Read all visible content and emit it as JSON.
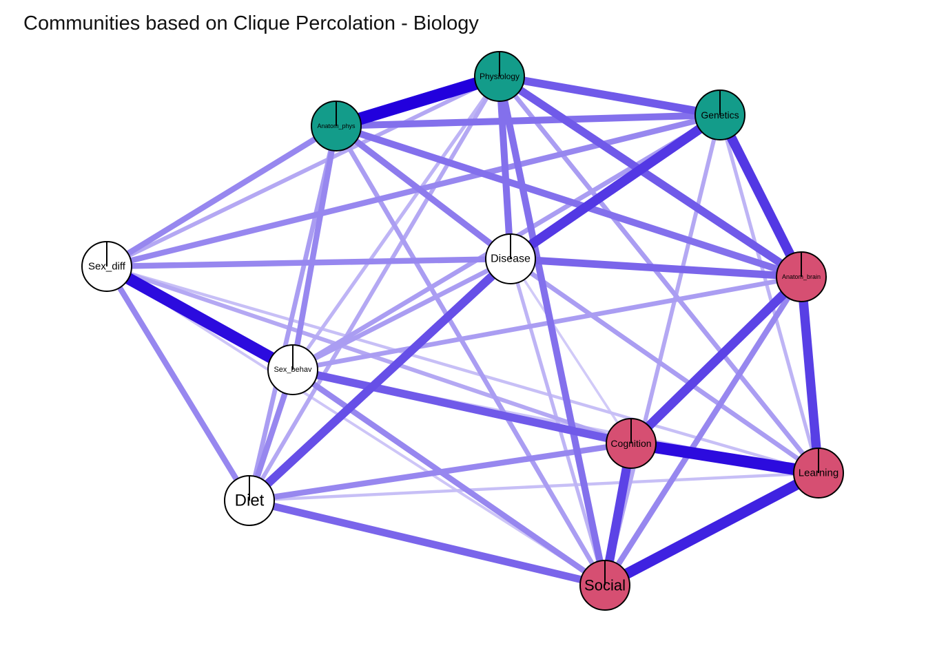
{
  "title": "Communities based on Clique Percolation - Biology",
  "colors": {
    "community_1": "#139C8A",
    "community_2": "#D64F72",
    "no_community": "#FFFFFF",
    "edge": "#2200DD",
    "node_border": "#000000"
  },
  "nodes": [
    {
      "id": "Physiology",
      "label": "Physiology",
      "community": "community_1"
    },
    {
      "id": "Anatom_phys",
      "label": "Anatom_phys",
      "community": "community_1"
    },
    {
      "id": "Genetics",
      "label": "Genetics",
      "community": "community_1"
    },
    {
      "id": "Sex_diff",
      "label": "Sex_diff",
      "community": "no_community"
    },
    {
      "id": "Disease",
      "label": "Disease",
      "community": "no_community"
    },
    {
      "id": "Anatom_brain",
      "label": "Anatom_brain",
      "community": "community_2"
    },
    {
      "id": "Sex_behav",
      "label": "Sex_behav",
      "community": "no_community"
    },
    {
      "id": "Cognition",
      "label": "Cognition",
      "community": "community_2"
    },
    {
      "id": "Learning",
      "label": "Learning",
      "community": "community_2"
    },
    {
      "id": "Diet",
      "label": "Diet",
      "community": "no_community"
    },
    {
      "id": "Social",
      "label": "Social",
      "community": "community_2"
    }
  ],
  "edges": [
    {
      "source": "Physiology",
      "target": "Anatom_phys",
      "weight": 1.0
    },
    {
      "source": "Sex_diff",
      "target": "Sex_behav",
      "weight": 0.95
    },
    {
      "source": "Cognition",
      "target": "Learning",
      "weight": 0.95
    },
    {
      "source": "Learning",
      "target": "Social",
      "weight": 0.85
    },
    {
      "source": "Genetics",
      "target": "Disease",
      "weight": 0.75
    },
    {
      "source": "Genetics",
      "target": "Anatom_brain",
      "weight": 0.75
    },
    {
      "source": "Anatom_brain",
      "target": "Learning",
      "weight": 0.72
    },
    {
      "source": "Anatom_brain",
      "target": "Cognition",
      "weight": 0.7
    },
    {
      "source": "Cognition",
      "target": "Social",
      "weight": 0.7
    },
    {
      "source": "Disease",
      "target": "Diet",
      "weight": 0.65
    },
    {
      "source": "Sex_behav",
      "target": "Cognition",
      "weight": 0.6
    },
    {
      "source": "Physiology",
      "target": "Genetics",
      "weight": 0.6
    },
    {
      "source": "Physiology",
      "target": "Anatom_brain",
      "weight": 0.6
    },
    {
      "source": "Disease",
      "target": "Anatom_brain",
      "weight": 0.55
    },
    {
      "source": "Diet",
      "target": "Social",
      "weight": 0.55
    },
    {
      "source": "Anatom_phys",
      "target": "Genetics",
      "weight": 0.5
    },
    {
      "source": "Anatom_phys",
      "target": "Anatom_brain",
      "weight": 0.5
    },
    {
      "source": "Physiology",
      "target": "Disease",
      "weight": 0.5
    },
    {
      "source": "Physiology",
      "target": "Social",
      "weight": 0.5
    },
    {
      "source": "Anatom_phys",
      "target": "Disease",
      "weight": 0.45
    },
    {
      "source": "Anatom_phys",
      "target": "Sex_diff",
      "weight": 0.4
    },
    {
      "source": "Anatom_phys",
      "target": "Sex_behav",
      "weight": 0.4
    },
    {
      "source": "Sex_diff",
      "target": "Genetics",
      "weight": 0.4
    },
    {
      "source": "Sex_diff",
      "target": "Disease",
      "weight": 0.4
    },
    {
      "source": "Sex_diff",
      "target": "Diet",
      "weight": 0.4
    },
    {
      "source": "Sex_behav",
      "target": "Diet",
      "weight": 0.4
    },
    {
      "source": "Sex_behav",
      "target": "Social",
      "weight": 0.4
    },
    {
      "source": "Diet",
      "target": "Cognition",
      "weight": 0.4
    },
    {
      "source": "Anatom_brain",
      "target": "Social",
      "weight": 0.4
    },
    {
      "source": "Genetics",
      "target": "Sex_behav",
      "weight": 0.3
    },
    {
      "source": "Anatom_phys",
      "target": "Diet",
      "weight": 0.3
    },
    {
      "source": "Disease",
      "target": "Sex_behav",
      "weight": 0.3
    },
    {
      "source": "Sex_behav",
      "target": "Anatom_brain",
      "weight": 0.3
    },
    {
      "source": "Anatom_phys",
      "target": "Social",
      "weight": 0.3
    },
    {
      "source": "Disease",
      "target": "Learning",
      "weight": 0.3
    },
    {
      "source": "Physiology",
      "target": "Learning",
      "weight": 0.3
    },
    {
      "source": "Physiology",
      "target": "Sex_diff",
      "weight": 0.25
    },
    {
      "source": "Physiology",
      "target": "Diet",
      "weight": 0.25
    },
    {
      "source": "Genetics",
      "target": "Social",
      "weight": 0.25
    },
    {
      "source": "Sex_diff",
      "target": "Cognition",
      "weight": 0.25
    },
    {
      "source": "Physiology",
      "target": "Sex_behav",
      "weight": 0.2
    },
    {
      "source": "Genetics",
      "target": "Learning",
      "weight": 0.2
    },
    {
      "source": "Disease",
      "target": "Social",
      "weight": 0.2
    },
    {
      "source": "Diet",
      "target": "Learning",
      "weight": 0.15
    },
    {
      "source": "Sex_diff",
      "target": "Learning",
      "weight": 0.15
    },
    {
      "source": "Sex_diff",
      "target": "Social",
      "weight": 0.12
    },
    {
      "source": "Sex_behav",
      "target": "Learning",
      "weight": 0.12
    },
    {
      "source": "Disease",
      "target": "Cognition",
      "weight": 0.1
    }
  ]
}
